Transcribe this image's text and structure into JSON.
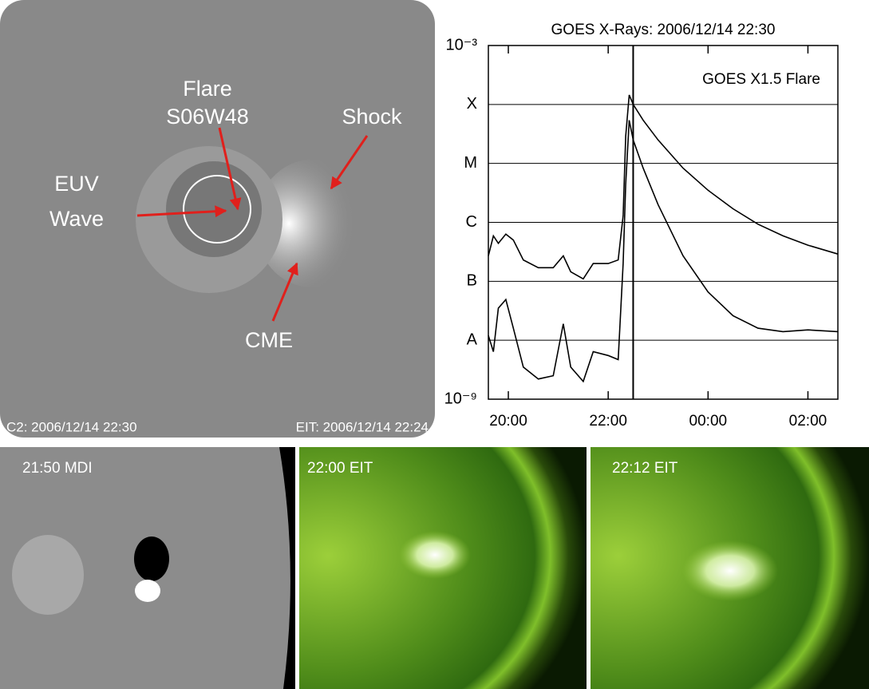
{
  "images": {
    "coronagraph": {
      "labels": [
        "Flare",
        "S06W48",
        "Shock",
        "EUV",
        "Wave",
        "CME"
      ],
      "captions": [
        "C2: 2006/12/14 22:30",
        "EIT: 2006/12/14 22:24"
      ]
    },
    "panels": [
      "21:50 MDI",
      "22:00 EIT",
      "22:12 EIT"
    ]
  },
  "chart_data": {
    "type": "line",
    "title": "GOES X-Rays: 2006/12/14 22:30",
    "annotation": "GOES X1.5 Flare",
    "yscale": "log",
    "grid": true,
    "vline": 22.5,
    "xlim": [
      19.6,
      26.6
    ],
    "xticks": [
      {
        "value": 20,
        "label": "20:00"
      },
      {
        "value": 22,
        "label": "22:00"
      },
      {
        "value": 24,
        "label": "00:00"
      },
      {
        "value": 26,
        "label": "02:00"
      }
    ],
    "ylim": [
      1e-09,
      0.001
    ],
    "yticks": [
      {
        "value": 1e-09,
        "label": "10⁻⁹"
      },
      {
        "value": 1e-08,
        "label": "A"
      },
      {
        "value": 1e-07,
        "label": "B"
      },
      {
        "value": 1e-06,
        "label": "C"
      },
      {
        "value": 1e-05,
        "label": "M"
      },
      {
        "value": 0.0001,
        "label": "X"
      },
      {
        "value": 0.001,
        "label": "10⁻³"
      }
    ],
    "x": [
      19.6,
      19.7,
      19.8,
      19.95,
      20.1,
      20.3,
      20.6,
      20.9,
      21.1,
      21.25,
      21.5,
      21.7,
      22.0,
      22.2,
      22.3,
      22.35,
      22.42,
      22.5,
      22.7,
      23.0,
      23.5,
      24.0,
      24.5,
      25.0,
      25.5,
      26.0,
      26.6
    ],
    "series": [
      {
        "color": "#000000",
        "values": [
          2.7e-07,
          5.9e-07,
          4.4e-07,
          6.3e-07,
          5e-07,
          2.3e-07,
          1.7e-07,
          1.7e-07,
          2.7e-07,
          1.45e-07,
          1.1e-07,
          2e-07,
          2e-07,
          2.3e-07,
          1.3e-06,
          2.9e-05,
          0.000145,
          0.0001,
          5.4e-05,
          2.5e-05,
          8.3e-06,
          3.5e-06,
          1.7e-06,
          9.3e-07,
          5.9e-07,
          4.1e-07,
          2.9e-07
        ]
      },
      {
        "color": "#000000",
        "values": [
          1.2e-08,
          6.4e-09,
          3.5e-08,
          4.9e-08,
          1.6e-08,
          3.5e-09,
          2.2e-09,
          2.5e-09,
          1.9e-08,
          3.5e-09,
          2e-09,
          6.4e-09,
          5.5e-09,
          4.7e-09,
          2e-07,
          4.4e-06,
          5.4e-05,
          2.5e-05,
          8.3e-06,
          2e-06,
          2.7e-07,
          6.6e-08,
          2.6e-08,
          1.6e-08,
          1.4e-08,
          1.5e-08,
          1.4e-08
        ]
      }
    ]
  }
}
